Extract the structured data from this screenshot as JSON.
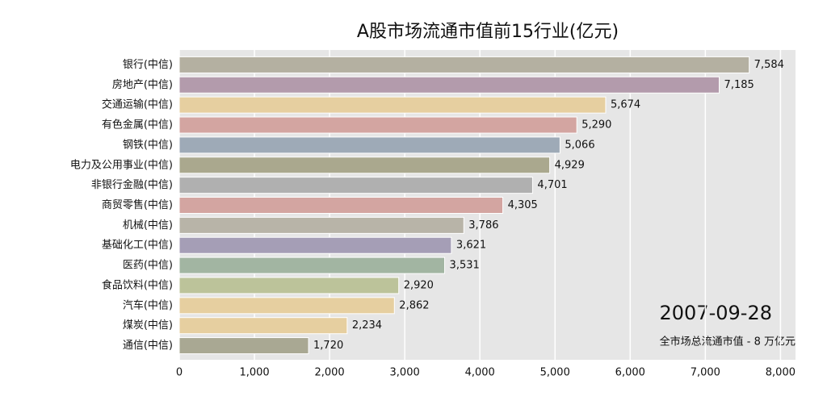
{
  "chart_data": {
    "type": "barh",
    "title": "A股市场流通市值前15行业(亿元)",
    "categories": [
      "银行(中信)",
      "房地产(中信)",
      "交通运输(中信)",
      "有色金属(中信)",
      "钢铁(中信)",
      "电力及公用事业(中信)",
      "非银行金融(中信)",
      "商贸零售(中信)",
      "机械(中信)",
      "基础化工(中信)",
      "医药(中信)",
      "食品饮料(中信)",
      "汽车(中信)",
      "煤炭(中信)",
      "通信(中信)"
    ],
    "values": [
      7584,
      7185,
      5674,
      5290,
      5066,
      4929,
      4701,
      4305,
      3786,
      3621,
      3531,
      2920,
      2862,
      2234,
      1720
    ],
    "value_labels": [
      "7,584",
      "7,185",
      "5,674",
      "5,290",
      "5,066",
      "4,929",
      "4,701",
      "4,305",
      "3,786",
      "3,621",
      "3,531",
      "2,920",
      "2,862",
      "2,234",
      "1,720"
    ],
    "colors": [
      "#b4b0a1",
      "#b39bac",
      "#e6cfa0",
      "#d3a5a1",
      "#9eaab7",
      "#aaa88e",
      "#b0b0b0",
      "#d3a5a1",
      "#b8b4a8",
      "#a59eb6",
      "#a2b5a2",
      "#bcc39a",
      "#e6cfa0",
      "#e6cfa0",
      "#a9a893"
    ],
    "xlim": [
      0,
      8200
    ],
    "xticks": [
      0,
      {
        "value": 1000,
        "label": "1,000"
      },
      {
        "value": 2000,
        "label": "2,000"
      },
      {
        "value": 3000,
        "label": "3,000"
      },
      {
        "value": 4000,
        "label": "4,000"
      },
      {
        "value": 5000,
        "label": "5,000"
      },
      {
        "value": 6000,
        "label": "6,000"
      },
      {
        "value": 7000,
        "label": "7,000"
      },
      {
        "value": 8000,
        "label": "8,000"
      }
    ],
    "grid": true,
    "annotations": [
      "2007-09-28",
      "全市场总流通市值 - 8 万亿元"
    ]
  }
}
